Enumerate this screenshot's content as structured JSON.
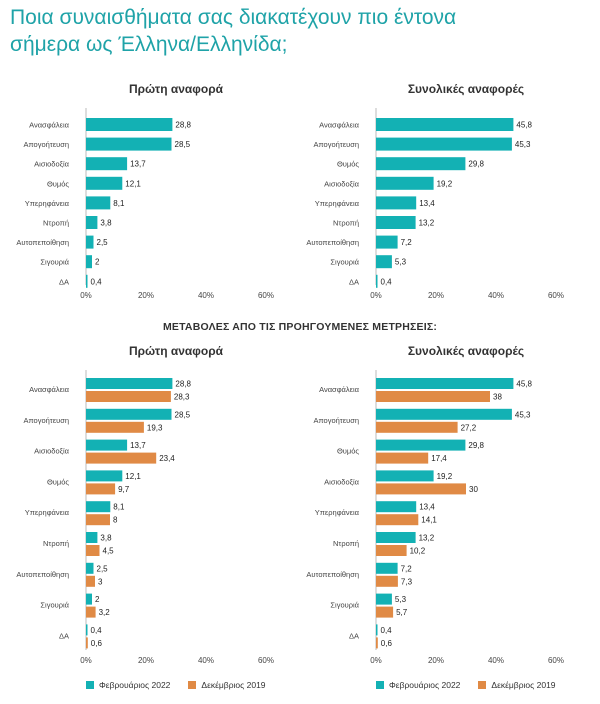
{
  "title_line1": "Ποια συναισθήματα σας διακατέχουν πιο έντονα",
  "title_line2": "σήμερα ως Έλληνα/Ελληνίδα;",
  "section_label": "ΜΕΤΑΒΟΛΕΣ ΑΠΟ ΤΙΣ ΠΡΟΗΓΟΥΜΕΝΕΣ ΜΕΤΡΗΣΕΙΣ:",
  "colors": {
    "title": "#1fa3a8",
    "feb2022": "#13b1b4",
    "dec2019": "#e08a45"
  },
  "legend": [
    {
      "label": "Φεβρουάριος 2022",
      "color": "#13b1b4"
    },
    {
      "label": "Δεκέμβριος 2019",
      "color": "#e08a45"
    }
  ],
  "chart_data": [
    {
      "type": "bar",
      "orientation": "horizontal",
      "title": "Πρώτη αναφορά",
      "categories": [
        "Ανασφάλεια",
        "Απογοήτευση",
        "Αισιοδοξία",
        "Θυμός",
        "Υπερηφάνεια",
        "Ντροπή",
        "Αυτοπεποίθηση",
        "Σιγουριά",
        "ΔΑ"
      ],
      "series": [
        {
          "name": "Φεβρουάριος 2022",
          "values": [
            28.8,
            28.5,
            13.7,
            12.1,
            8.1,
            3.8,
            2.5,
            2,
            0.4
          ]
        }
      ],
      "value_labels": [
        [
          "28,8",
          "28,5",
          "13,7",
          "12,1",
          "8,1",
          "3,8",
          "2,5",
          "2",
          "0,4"
        ]
      ],
      "xlim": [
        0,
        60
      ],
      "ticks": [
        "0%",
        "20%",
        "40%",
        "60%"
      ]
    },
    {
      "type": "bar",
      "orientation": "horizontal",
      "title": "Συνολικές αναφορές",
      "categories": [
        "Ανασφάλεια",
        "Απογοήτευση",
        "Θυμός",
        "Αισιοδοξία",
        "Υπερηφάνεια",
        "Ντροπή",
        "Αυτοπεποίθηση",
        "Σιγουριά",
        "ΔΑ"
      ],
      "series": [
        {
          "name": "Φεβρουάριος 2022",
          "values": [
            45.8,
            45.3,
            29.8,
            19.2,
            13.4,
            13.2,
            7.2,
            5.3,
            0.4
          ]
        }
      ],
      "value_labels": [
        [
          "45,8",
          "45,3",
          "29,8",
          "19,2",
          "13,4",
          "13,2",
          "7,2",
          "5,3",
          "0,4"
        ]
      ],
      "xlim": [
        0,
        60
      ],
      "ticks": [
        "0%",
        "20%",
        "40%",
        "60%"
      ]
    },
    {
      "type": "bar",
      "orientation": "horizontal",
      "title": "Πρώτη αναφορά",
      "categories": [
        "Ανασφάλεια",
        "Απογοήτευση",
        "Αισιοδοξία",
        "Θυμός",
        "Υπερηφάνεια",
        "Ντροπή",
        "Αυτοπεποίθηση",
        "Σιγουριά",
        "ΔΑ"
      ],
      "series": [
        {
          "name": "Φεβρουάριος 2022",
          "values": [
            28.8,
            28.5,
            13.7,
            12.1,
            8.1,
            3.8,
            2.5,
            2,
            0.4
          ]
        },
        {
          "name": "Δεκέμβριος 2019",
          "values": [
            28.3,
            19.3,
            23.4,
            9.7,
            8,
            4.5,
            3,
            3.2,
            0.6
          ]
        }
      ],
      "value_labels": [
        [
          "28,8",
          "28,5",
          "13,7",
          "12,1",
          "8,1",
          "3,8",
          "2,5",
          "2",
          "0,4"
        ],
        [
          "28,3",
          "19,3",
          "23,4",
          "9,7",
          "8",
          "4,5",
          "3",
          "3,2",
          "0,6"
        ]
      ],
      "xlim": [
        0,
        60
      ],
      "ticks": [
        "0%",
        "20%",
        "40%",
        "60%"
      ],
      "legend": "bottom"
    },
    {
      "type": "bar",
      "orientation": "horizontal",
      "title": "Συνολικές αναφορές",
      "categories": [
        "Ανασφάλεια",
        "Απογοήτευση",
        "Θυμός",
        "Αισιοδοξία",
        "Υπερηφάνεια",
        "Ντροπή",
        "Αυτοπεποίθηση",
        "Σιγουριά",
        "ΔΑ"
      ],
      "series": [
        {
          "name": "Φεβρουάριος 2022",
          "values": [
            45.8,
            45.3,
            29.8,
            19.2,
            13.4,
            13.2,
            7.2,
            5.3,
            0.4
          ]
        },
        {
          "name": "Δεκέμβριος 2019",
          "values": [
            38,
            27.2,
            17.4,
            30,
            14.1,
            10.2,
            7.3,
            5.7,
            0.6
          ]
        }
      ],
      "value_labels": [
        [
          "45,8",
          "45,3",
          "29,8",
          "19,2",
          "13,4",
          "13,2",
          "7,2",
          "5,3",
          "0,4"
        ],
        [
          "38",
          "27,2",
          "17,4",
          "30",
          "14,1",
          "10,2",
          "7,3",
          "5,7",
          "0,6"
        ]
      ],
      "xlim": [
        0,
        60
      ],
      "ticks": [
        "0%",
        "20%",
        "40%",
        "60%"
      ],
      "legend": "bottom"
    }
  ]
}
